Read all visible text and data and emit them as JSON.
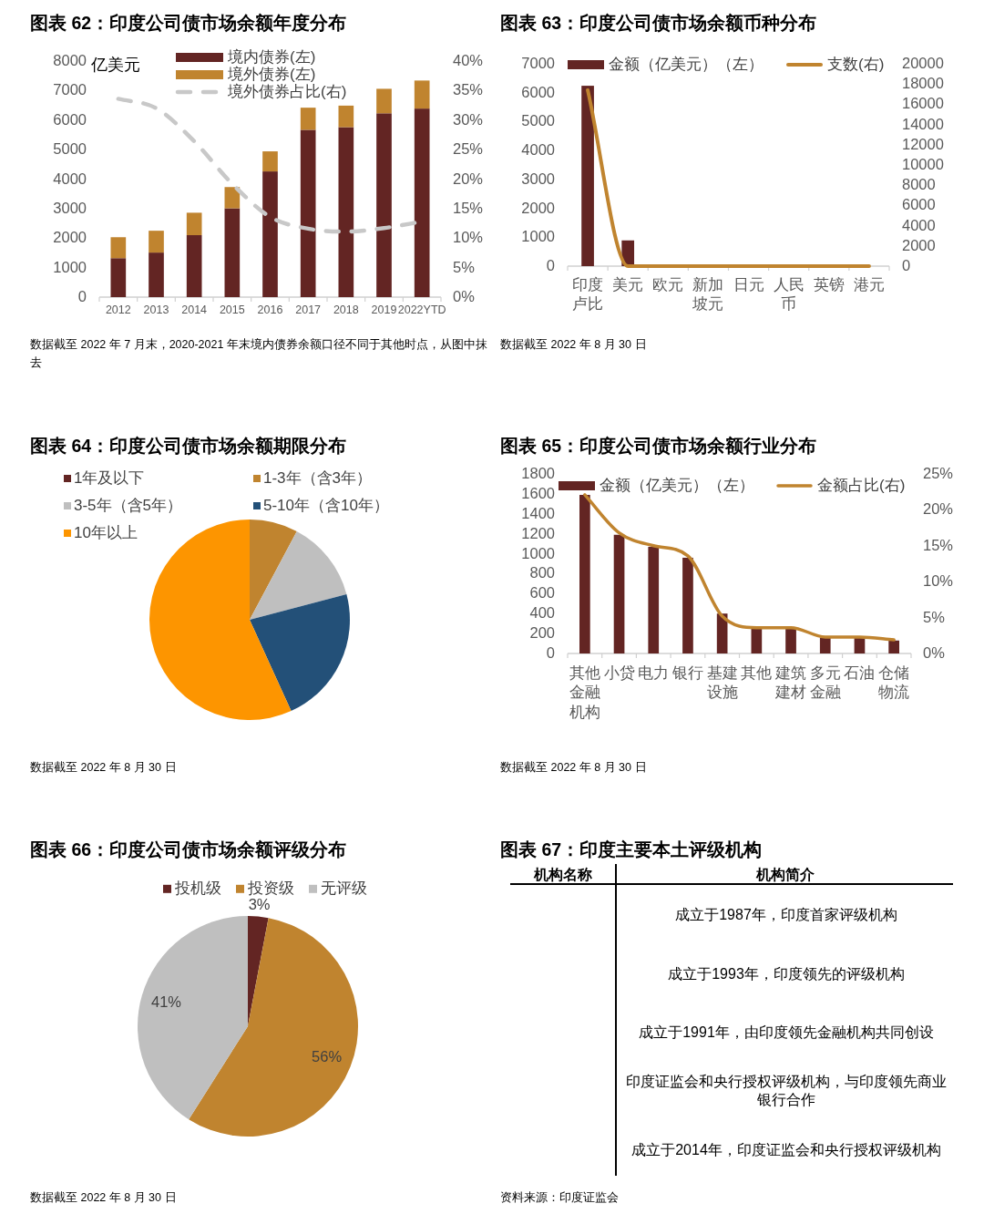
{
  "chart_data": [
    {
      "type": "bar",
      "title": "图表 62：印度公司债市场余额年度分布",
      "ylabel": "亿美元",
      "categories": [
        "2012",
        "2013",
        "2014",
        "2015",
        "2016",
        "2017",
        "2018",
        "2019",
        "2022YTD"
      ],
      "stacked": true,
      "series": [
        {
          "name": "境内债券(左)",
          "color": "#632523",
          "values": [
            1320,
            1510,
            2100,
            3010,
            4260,
            5670,
            5760,
            6230,
            6390
          ]
        },
        {
          "name": "境外债券(左)",
          "color": "#c0842f",
          "values": [
            710,
            740,
            760,
            720,
            680,
            750,
            730,
            830,
            950
          ]
        },
        {
          "name": "境外债券占比(右)",
          "type": "line",
          "axis": "y2",
          "line_style": "dashed",
          "color": "#c8c8c8",
          "values": [
            33.6,
            32.0,
            26.4,
            19.2,
            13.6,
            11.6,
            11.1,
            11.7,
            12.8
          ]
        }
      ],
      "ylim": [
        0,
        8000
      ],
      "yticks": [
        0,
        1000,
        2000,
        3000,
        4000,
        5000,
        6000,
        7000,
        8000
      ],
      "y2lim": [
        0,
        40
      ],
      "y2ticks": [
        {
          "value": 0,
          "label": "0%"
        },
        {
          "value": 5,
          "label": "5%"
        },
        {
          "value": 10,
          "label": "10%"
        },
        {
          "value": 15,
          "label": "15%"
        },
        {
          "value": 20,
          "label": "20%"
        },
        {
          "value": 25,
          "label": "25%"
        },
        {
          "value": 30,
          "label": "30%"
        },
        {
          "value": 35,
          "label": "35%"
        },
        {
          "value": 40,
          "label": "40%"
        }
      ],
      "legend": "top",
      "annotations": [
        "数据截至 2022 年 7 月末，2020-2021 年末境内债券余额口径不同于其他时点，从图中抹去"
      ]
    },
    {
      "type": "bar",
      "title": "图表 63：印度公司债市场余额币种分布",
      "categories": [
        "印度卢比",
        "美元",
        "欧元",
        "新加坡元",
        "日元",
        "人民币",
        "英镑",
        "港元"
      ],
      "series": [
        {
          "name": "金额（亿美元）（左）",
          "color": "#632523",
          "values": [
            6240,
            890,
            0,
            0,
            0,
            0,
            0,
            0
          ]
        },
        {
          "name": "支数(右)",
          "type": "line",
          "axis": "y2",
          "color": "#c0842f",
          "values": [
            17400,
            0,
            0,
            0,
            0,
            0,
            0,
            0
          ]
        }
      ],
      "ylim": [
        0,
        7000
      ],
      "yticks": [
        0,
        1000,
        2000,
        3000,
        4000,
        5000,
        6000,
        7000
      ],
      "y2lim": [
        0,
        20000
      ],
      "y2ticks": [
        0,
        2000,
        4000,
        6000,
        8000,
        10000,
        12000,
        14000,
        16000,
        18000,
        20000
      ],
      "legend": "top",
      "annotations": [
        "数据截至 2022 年 8 月 30 日"
      ]
    },
    {
      "type": "pie",
      "title": "图表 64：印度公司债市场余额期限分布",
      "categories": [
        "1年及以下",
        "1-3年（含3年）",
        "3-5年（含5年）",
        "5-10年（含10年）",
        "10年以上"
      ],
      "values": [
        0,
        7.8,
        13.1,
        22.3,
        56.8
      ],
      "colors": [
        "#632523",
        "#c0842f",
        "#bfbfbf",
        "#235078",
        "#fd9500"
      ],
      "legend": "top left",
      "annotations": [
        "数据截至 2022 年 8 月 30 日"
      ]
    },
    {
      "type": "bar",
      "title": "图表 65：印度公司债市场余额行业分布",
      "categories": [
        "其他金融机构",
        "小贷",
        "电力",
        "银行",
        "基建设施",
        "其他",
        "建筑建材",
        "多元金融",
        "石油",
        "仓储物流"
      ],
      "series": [
        {
          "name": "金额（亿美元）（左）",
          "color": "#632523",
          "values": [
            1590,
            1190,
            1070,
            960,
            400,
            260,
            250,
            160,
            160,
            130
          ]
        },
        {
          "name": "金额占比(右)",
          "type": "line",
          "axis": "y2",
          "color": "#c0842f",
          "values": [
            22.1,
            16.8,
            15.0,
            13.6,
            5.2,
            3.6,
            3.6,
            2.3,
            2.3,
            1.9
          ]
        }
      ],
      "ylim": [
        0,
        1800
      ],
      "yticks": [
        0,
        200,
        400,
        600,
        800,
        1000,
        1200,
        1400,
        1600,
        1800
      ],
      "y2lim": [
        0,
        25
      ],
      "y2ticks": [
        {
          "value": 0,
          "label": "0%"
        },
        {
          "value": 5,
          "label": "5%"
        },
        {
          "value": 10,
          "label": "10%"
        },
        {
          "value": 15,
          "label": "15%"
        },
        {
          "value": 20,
          "label": "20%"
        },
        {
          "value": 25,
          "label": "25%"
        }
      ],
      "legend": "top",
      "annotations": [
        "数据截至 2022 年 8 月 30 日"
      ]
    },
    {
      "type": "pie",
      "title": "图表 66：印度公司债市场余额评级分布",
      "categories": [
        "投机级",
        "投资级",
        "无评级"
      ],
      "values": [
        3,
        56,
        41
      ],
      "value_labels": [
        "3%",
        "56%",
        "41%"
      ],
      "colors": [
        "#632523",
        "#c0842f",
        "#bfbfbf"
      ],
      "legend": "top",
      "annotations": [
        "数据截至 2022 年 8 月 30 日"
      ]
    },
    {
      "type": "other",
      "title": "图表 67：印度主要本土评级机构",
      "categories": [
        "机构名称",
        "机构简介"
      ],
      "annotations": [
        "成立于1987年，印度首家评级机构",
        "成立于1993年，印度领先的评级机构",
        "成立于1991年，由印度领先金融机构共同创设",
        "印度证监会和央行授权评级机构，与印度领先商业银行合作",
        "成立于2014年，印度证监会和央行授权评级机构",
        "资料来源：印度证监会"
      ]
    }
  ]
}
